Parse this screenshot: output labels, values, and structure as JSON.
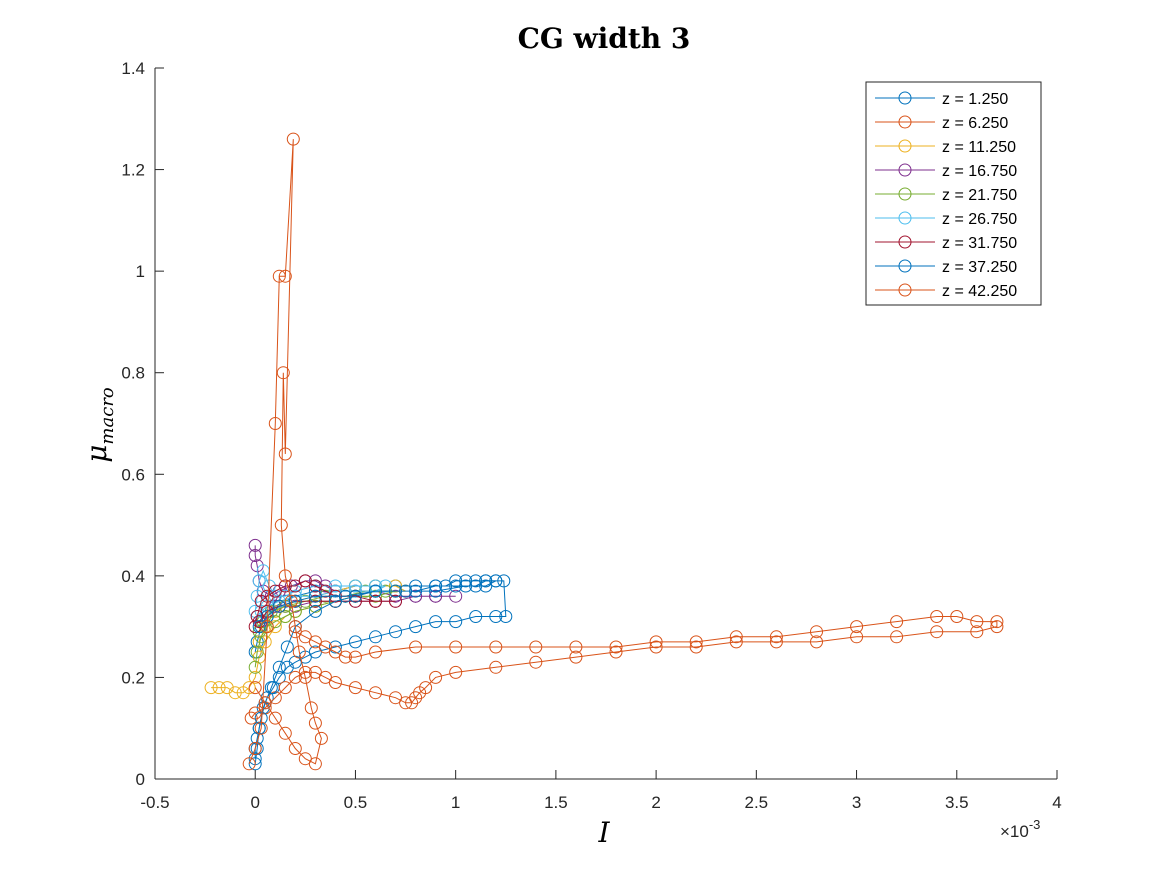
{
  "chart_data": {
    "type": "line",
    "title": "CG width 3",
    "xlabel": "I",
    "ylabel_main": "μ",
    "ylabel_sub": "macro",
    "x_exponent_prefix": "×10",
    "x_exponent": "-3",
    "xlim": [
      -0.5,
      4
    ],
    "ylim": [
      0,
      1.4
    ],
    "xticks": [
      -0.5,
      0,
      0.5,
      1,
      1.5,
      2,
      2.5,
      3,
      3.5,
      4
    ],
    "xtick_labels": [
      "-0.5",
      "0",
      "0.5",
      "1",
      "1.5",
      "2",
      "2.5",
      "3",
      "3.5",
      "4"
    ],
    "yticks": [
      0,
      0.2,
      0.4,
      0.6,
      0.8,
      1,
      1.2,
      1.4
    ],
    "ytick_labels": [
      "0",
      "0.2",
      "0.4",
      "0.6",
      "0.8",
      "1",
      "1.2",
      "1.4"
    ],
    "legend_position": "top-right",
    "grid": false,
    "marker": "circle-open",
    "series": [
      {
        "name": "z = 1.250",
        "color": "#0072BD",
        "x": [
          0,
          0.01,
          0.02,
          0.04,
          0.06,
          0.09,
          0.12,
          0.16,
          0.2,
          0.25,
          0.3,
          0.4,
          0.5,
          0.6,
          0.7,
          0.8,
          0.9,
          1.0,
          1.1,
          1.2,
          1.25,
          1.24,
          1.2,
          1.15,
          1.1,
          1.05,
          1.0,
          0.95,
          0.9,
          0.8,
          0.7,
          0.6,
          0.5,
          0.4,
          0.3,
          0.2,
          0.15,
          0.1,
          0.06,
          0.03,
          0.01,
          0
        ],
        "y": [
          0.03,
          0.06,
          0.1,
          0.14,
          0.16,
          0.18,
          0.2,
          0.22,
          0.23,
          0.24,
          0.25,
          0.26,
          0.27,
          0.28,
          0.29,
          0.3,
          0.31,
          0.31,
          0.32,
          0.32,
          0.32,
          0.39,
          0.39,
          0.39,
          0.39,
          0.39,
          0.39,
          0.38,
          0.38,
          0.38,
          0.38,
          0.38,
          0.38,
          0.37,
          0.37,
          0.36,
          0.35,
          0.34,
          0.32,
          0.3,
          0.27,
          0.25
        ]
      },
      {
        "name": "z = 6.250",
        "color": "#D95319",
        "x": [
          -0.02,
          0.0,
          0.05,
          0.1,
          0.15,
          0.2,
          0.25,
          0.3,
          0.35,
          0.4,
          0.5,
          0.6,
          0.7,
          0.75,
          0.78,
          0.8,
          0.82,
          0.85,
          0.9,
          1.0,
          1.2,
          1.4,
          1.6,
          1.8,
          2.0,
          2.2,
          2.4,
          2.6,
          2.8,
          3.0,
          3.2,
          3.4,
          3.6,
          3.7,
          3.7,
          3.6,
          3.5,
          3.4,
          3.2,
          3.0,
          2.8,
          2.6,
          2.4,
          2.2,
          2.0,
          1.8,
          1.6,
          1.4,
          1.2,
          1.0,
          0.8,
          0.6,
          0.5,
          0.45,
          0.4,
          0.35,
          0.3,
          0.25,
          0.2
        ],
        "y": [
          0.12,
          0.13,
          0.14,
          0.16,
          0.18,
          0.2,
          0.21,
          0.21,
          0.2,
          0.19,
          0.18,
          0.17,
          0.16,
          0.15,
          0.15,
          0.16,
          0.17,
          0.18,
          0.2,
          0.21,
          0.22,
          0.23,
          0.24,
          0.25,
          0.26,
          0.26,
          0.27,
          0.27,
          0.27,
          0.28,
          0.28,
          0.29,
          0.29,
          0.3,
          0.31,
          0.31,
          0.32,
          0.32,
          0.31,
          0.3,
          0.29,
          0.28,
          0.28,
          0.27,
          0.27,
          0.26,
          0.26,
          0.26,
          0.26,
          0.26,
          0.26,
          0.25,
          0.24,
          0.24,
          0.25,
          0.26,
          0.27,
          0.28,
          0.29
        ]
      },
      {
        "name": "z = 11.250",
        "color": "#EDB120",
        "x": [
          -0.22,
          -0.18,
          -0.14,
          -0.1,
          -0.06,
          -0.03,
          0.0,
          0.02,
          0.05,
          0.1,
          0.15,
          0.2,
          0.3,
          0.4,
          0.5,
          0.6,
          0.7,
          0.75,
          0.7,
          0.6,
          0.5,
          0.4,
          0.3,
          0.2,
          0.1,
          0.05,
          0.02
        ],
        "y": [
          0.18,
          0.18,
          0.18,
          0.17,
          0.17,
          0.18,
          0.2,
          0.24,
          0.27,
          0.3,
          0.32,
          0.33,
          0.34,
          0.35,
          0.36,
          0.37,
          0.37,
          0.37,
          0.38,
          0.38,
          0.38,
          0.37,
          0.36,
          0.35,
          0.33,
          0.3,
          0.27
        ]
      },
      {
        "name": "z = 16.750",
        "color": "#7E2F8E",
        "x": [
          0.0,
          0.0,
          0.01,
          0.02,
          0.04,
          0.08,
          0.12,
          0.18,
          0.25,
          0.3,
          0.35,
          0.4,
          0.5,
          0.6,
          0.7,
          0.8,
          0.9,
          1.0,
          0.9,
          0.8,
          0.7,
          0.6,
          0.5,
          0.4,
          0.3,
          0.2,
          0.15,
          0.1,
          0.06,
          0.03
        ],
        "y": [
          0.46,
          0.44,
          0.42,
          0.39,
          0.37,
          0.36,
          0.37,
          0.38,
          0.39,
          0.39,
          0.38,
          0.37,
          0.37,
          0.37,
          0.36,
          0.36,
          0.36,
          0.36,
          0.36,
          0.36,
          0.35,
          0.35,
          0.35,
          0.35,
          0.35,
          0.34,
          0.34,
          0.34,
          0.33,
          0.31
        ]
      },
      {
        "name": "z = 21.750",
        "color": "#77AC30",
        "x": [
          0.0,
          0.01,
          0.03,
          0.06,
          0.1,
          0.15,
          0.2,
          0.3,
          0.4,
          0.5,
          0.6,
          0.7,
          0.65,
          0.55,
          0.45,
          0.35,
          0.25,
          0.15,
          0.08,
          0.04,
          0.02
        ],
        "y": [
          0.22,
          0.25,
          0.28,
          0.3,
          0.31,
          0.32,
          0.33,
          0.34,
          0.35,
          0.36,
          0.36,
          0.37,
          0.37,
          0.37,
          0.36,
          0.36,
          0.35,
          0.34,
          0.33,
          0.31,
          0.29
        ]
      },
      {
        "name": "z = 26.750",
        "color": "#4DBEEE",
        "x": [
          0.0,
          0.01,
          0.02,
          0.04,
          0.07,
          0.1,
          0.15,
          0.2,
          0.3,
          0.4,
          0.5,
          0.6,
          0.65,
          0.6,
          0.5,
          0.4,
          0.3,
          0.2,
          0.12,
          0.06,
          0.03,
          0.01
        ],
        "y": [
          0.33,
          0.36,
          0.39,
          0.41,
          0.38,
          0.36,
          0.36,
          0.37,
          0.38,
          0.38,
          0.38,
          0.38,
          0.38,
          0.37,
          0.37,
          0.37,
          0.36,
          0.36,
          0.35,
          0.34,
          0.33,
          0.32
        ]
      },
      {
        "name": "z = 31.750",
        "color": "#A2142F",
        "x": [
          0.0,
          0.01,
          0.03,
          0.06,
          0.1,
          0.15,
          0.2,
          0.25,
          0.3,
          0.35,
          0.4,
          0.5,
          0.6,
          0.7,
          0.6,
          0.5,
          0.4,
          0.3,
          0.2,
          0.12,
          0.06,
          0.02
        ],
        "y": [
          0.3,
          0.32,
          0.35,
          0.36,
          0.37,
          0.38,
          0.38,
          0.39,
          0.38,
          0.37,
          0.36,
          0.36,
          0.35,
          0.35,
          0.35,
          0.35,
          0.35,
          0.35,
          0.35,
          0.34,
          0.33,
          0.31
        ]
      },
      {
        "name": "z = 37.250",
        "color": "#0072BD",
        "x": [
          0.0,
          0.0,
          0.01,
          0.02,
          0.03,
          0.05,
          0.08,
          0.12,
          0.16,
          0.2,
          0.3,
          0.4,
          0.5,
          0.6,
          0.7,
          0.8,
          0.9,
          1.0,
          1.1,
          1.15,
          1.2,
          1.15,
          1.05,
          0.9,
          0.75,
          0.6,
          0.45,
          0.3,
          0.2,
          0.12,
          0.06,
          0.02
        ],
        "y": [
          0.04,
          0.06,
          0.08,
          0.1,
          0.12,
          0.15,
          0.18,
          0.22,
          0.26,
          0.3,
          0.33,
          0.35,
          0.36,
          0.37,
          0.37,
          0.37,
          0.38,
          0.38,
          0.38,
          0.39,
          0.39,
          0.38,
          0.38,
          0.37,
          0.37,
          0.37,
          0.36,
          0.36,
          0.35,
          0.34,
          0.32,
          0.3
        ]
      },
      {
        "name": "z = 42.250",
        "color": "#D95319",
        "x": [
          -0.03,
          0.0,
          0.03,
          0.06,
          0.1,
          0.12,
          0.15,
          0.19,
          0.15,
          0.14,
          0.13,
          0.15,
          0.18,
          0.2,
          0.22,
          0.25,
          0.28,
          0.3,
          0.33,
          0.3,
          0.25,
          0.2,
          0.15,
          0.1,
          0.05,
          0.0
        ],
        "y": [
          0.03,
          0.06,
          0.1,
          0.3,
          0.7,
          0.99,
          0.99,
          1.26,
          0.64,
          0.8,
          0.5,
          0.4,
          0.35,
          0.3,
          0.25,
          0.2,
          0.14,
          0.11,
          0.08,
          0.03,
          0.04,
          0.06,
          0.09,
          0.12,
          0.15,
          0.18
        ]
      }
    ]
  }
}
